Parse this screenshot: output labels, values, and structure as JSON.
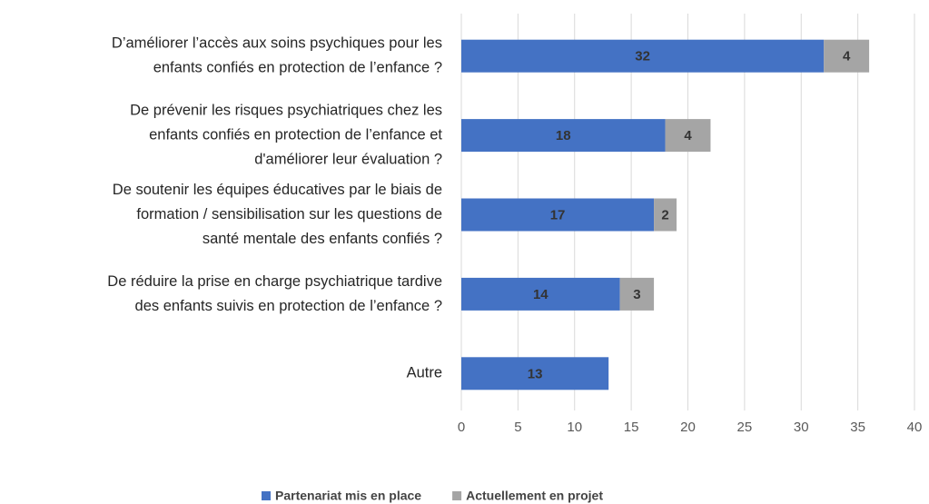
{
  "chart_data": {
    "type": "bar",
    "orientation": "horizontal",
    "stacked": true,
    "categories": [
      [
        "D’améliorer l’accès aux soins psychiques pour les",
        "enfants confiés en protection de l’enfance ?"
      ],
      [
        "De prévenir les risques psychiatriques chez les",
        "enfants confiés en protection de l’enfance et",
        "d'améliorer leur évaluation ?"
      ],
      [
        "De soutenir les équipes éducatives par le biais de",
        "formation / sensibilisation sur les questions de",
        "santé mentale des enfants confiés ?"
      ],
      [
        "De réduire la prise en charge psychiatrique tardive",
        "des enfants suivis en protection de l’enfance ?"
      ],
      [
        "Autre"
      ]
    ],
    "series": [
      {
        "name": "Partenariat mis en place",
        "color": "#4472c4",
        "values": [
          32,
          18,
          17,
          14,
          13
        ]
      },
      {
        "name": "Actuellement en projet",
        "color": "#a5a5a5",
        "values": [
          4,
          4,
          2,
          3,
          null
        ]
      }
    ],
    "xlim": [
      0,
      40
    ],
    "xticks": [
      0,
      5,
      10,
      15,
      20,
      25,
      30,
      35,
      40
    ],
    "grid": true,
    "legend": "bottom"
  }
}
